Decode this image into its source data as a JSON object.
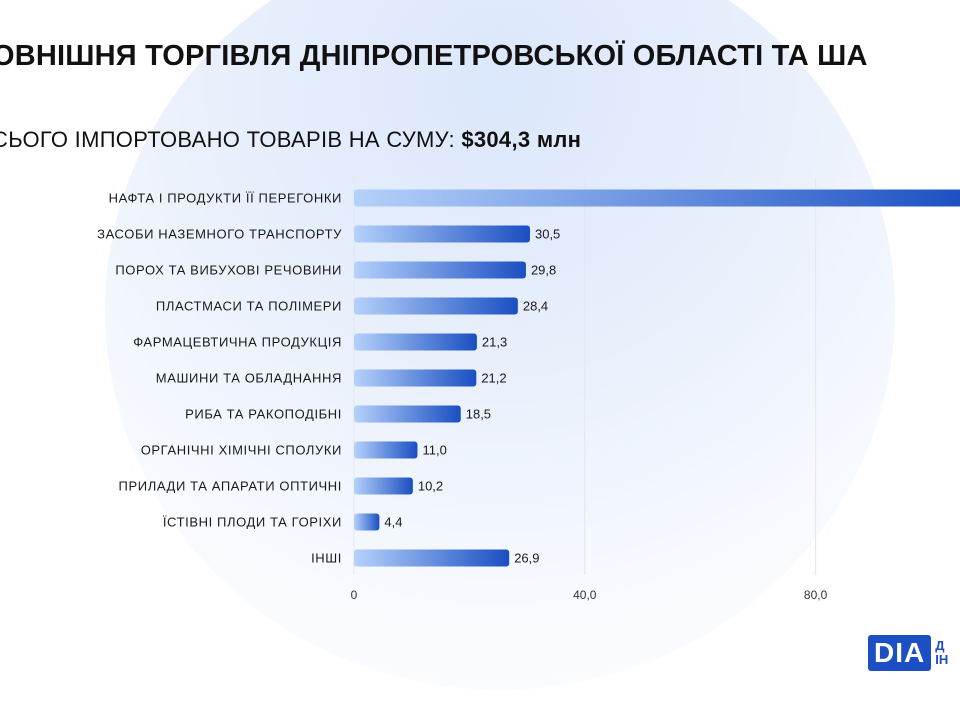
{
  "header": {
    "title": "ОВНІШНЯ ТОРГІВЛЯ ДНІПРОПЕТРОВСЬКОЇ ОБЛАСТІ ТА ША",
    "subtitle_prefix": "СЬОГО ІМПОРТОВАНО ТОВАРІВ НА СУМУ:",
    "subtitle_amount": "$304,3 млн"
  },
  "logo": {
    "mark": "DIA",
    "text_line1": "Д",
    "text_line2": "ІН"
  },
  "colors": {
    "bar_start": "#b5d1fb",
    "bar_end": "#1a4fc2",
    "grid": "#e2e6ee"
  },
  "chart_data": {
    "type": "bar",
    "orientation": "horizontal",
    "categories": [
      "НАФТА І ПРОДУКТИ ЇЇ ПЕРЕГОНКИ",
      "ЗАСОБИ НАЗЕМНОГО ТРАНСПОРТУ",
      "ПОРОХ ТА ВИБУХОВІ РЕЧОВИНИ",
      "ПЛАСТМАСИ ТА ПОЛІМЕРИ",
      "ФАРМАЦЕВТИЧНА ПРОДУКЦІЯ",
      "МАШИНИ ТА ОБЛАДНАННЯ",
      "РИБА ТА РАКОПОДІБНІ",
      "ОРГАНІЧНІ ХІМІЧНІ СПОЛУКИ",
      "ПРИЛАДИ ТА АПАРАТИ ОПТИЧНІ",
      "ЇСТІВНІ ПЛОДИ ТА ГОРІХИ",
      "ІНШІ"
    ],
    "values": [
      null,
      30.5,
      29.8,
      28.4,
      21.3,
      21.2,
      18.5,
      11.0,
      10.2,
      4.4,
      26.9
    ],
    "value_labels": [
      "",
      "30,5",
      "29,8",
      "28,4",
      "21,3",
      "21,2",
      "18,5",
      "11,0",
      "10,2",
      "4,4",
      "26,9"
    ],
    "first_bar_clipped": true,
    "xticks": [
      0,
      40,
      80
    ],
    "xtick_labels": [
      "0",
      "40,0",
      "80,0"
    ],
    "grid": true,
    "legend": "none"
  }
}
